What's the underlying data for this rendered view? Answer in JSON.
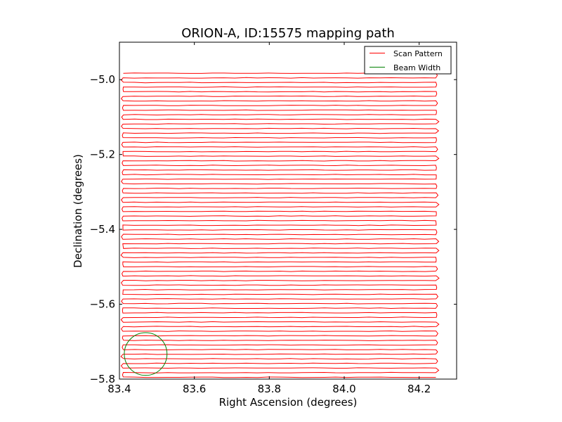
{
  "chart_data": {
    "type": "line",
    "title": "ORION-A, ID:15575 mapping path",
    "xlabel": "Right Ascension (degrees)",
    "ylabel": "Declination (degrees)",
    "xlim": [
      83.4,
      84.3
    ],
    "ylim": [
      -5.8,
      -4.9
    ],
    "xticks": [
      83.4,
      83.6,
      83.8,
      84.0,
      84.2
    ],
    "xtick_labels": [
      "83.4",
      "83.6",
      "83.8",
      "84.0",
      "84.2"
    ],
    "yticks": [
      -5.0,
      -5.2,
      -5.4,
      -5.6,
      -5.8
    ],
    "ytick_labels": [
      "−5.0",
      "−5.2",
      "−5.4",
      "−5.6",
      "−5.8"
    ],
    "grid": false,
    "legend_position": "upper right",
    "series": [
      {
        "name": "Scan Pattern",
        "color": "#ff0000",
        "kind": "raster",
        "ra_range": [
          83.41,
          84.245
        ],
        "dec_start": -4.983,
        "dec_end": -5.795,
        "row_count": 67
      },
      {
        "name": "Beam Width",
        "color": "#008000",
        "kind": "circle",
        "center_ra": 83.47,
        "center_dec": -5.733,
        "radius_deg": 0.057
      }
    ]
  }
}
